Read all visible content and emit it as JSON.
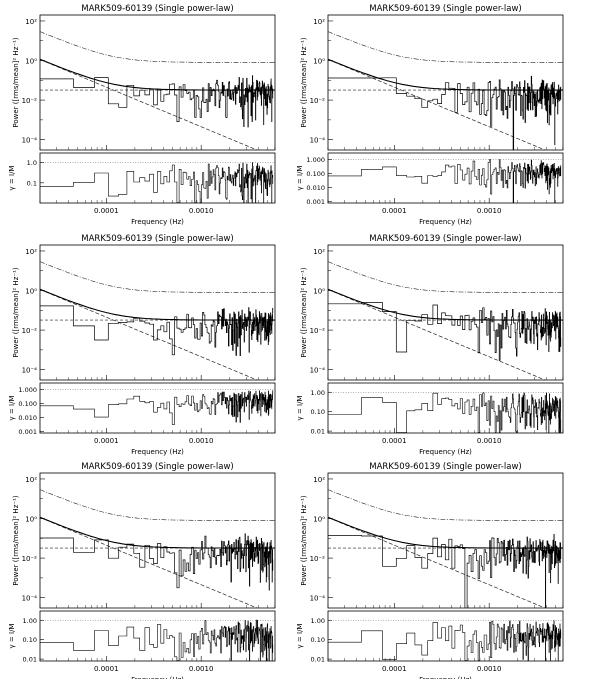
{
  "figure": {
    "panel_title": "MARK509-60139 (Single power-law)",
    "xlabel": "Frequency (Hz)",
    "ylabel_upper": "Power ([rms/mean]² Hz⁻¹)",
    "ylabel_lower": "γ = I/M",
    "x_ticks": [
      "0.0001",
      "0.0010"
    ],
    "upper_ticks": [
      "10²",
      "10⁰",
      "10⁻²",
      "10⁻⁴"
    ],
    "lower_ticks_a": [
      "1.0",
      "0.1"
    ],
    "lower_ticks_b": [
      "1.000",
      "0.100",
      "0.010",
      "0.001"
    ],
    "lower_ticks_c": [
      "1.00",
      "0.10",
      "0.01"
    ]
  },
  "chart_data": [
    {
      "type": "line",
      "title": "MARK509-60139 (Single power-law)",
      "xlabel": "Frequency (Hz)",
      "ylabel": "Power ([rms/mean]² Hz⁻¹)",
      "xscale": "log",
      "yscale": "log",
      "xlim": [
        2e-05,
        0.006
      ],
      "ylim": [
        3e-05,
        200
      ],
      "lower_ylabel": "γ = I/M",
      "lower_ylim": [
        0.01,
        3
      ],
      "model_break": 0.005,
      "lower_ticks": "a",
      "seed": 11
    },
    {
      "type": "line",
      "title": "MARK509-60139 (Single power-law)",
      "xlabel": "Frequency (Hz)",
      "ylabel": "Power ([rms/mean]² Hz⁻¹)",
      "xscale": "log",
      "yscale": "log",
      "xlim": [
        2e-05,
        0.006
      ],
      "ylim": [
        3e-05,
        200
      ],
      "lower_ylabel": "γ = I/M",
      "lower_ylim": [
        0.0008,
        3
      ],
      "model_break": 0.005,
      "lower_ticks": "b",
      "seed": 23
    },
    {
      "type": "line",
      "title": "MARK509-60139 (Single power-law)",
      "xlabel": "Frequency (Hz)",
      "ylabel": "Power ([rms/mean]² Hz⁻¹)",
      "xscale": "log",
      "yscale": "log",
      "xlim": [
        2e-05,
        0.006
      ],
      "ylim": [
        3e-05,
        200
      ],
      "lower_ylabel": "γ = I/M",
      "lower_ylim": [
        0.0008,
        3
      ],
      "model_break": 0.005,
      "lower_ticks": "b",
      "seed": 37
    },
    {
      "type": "line",
      "title": "MARK509-60139 (Single power-law)",
      "xlabel": "Frequency (Hz)",
      "ylabel": "Power ([rms/mean]² Hz⁻¹)",
      "xscale": "log",
      "yscale": "log",
      "xlim": [
        2e-05,
        0.006
      ],
      "ylim": [
        3e-05,
        200
      ],
      "lower_ylabel": "γ = I/M",
      "lower_ylim": [
        0.008,
        3
      ],
      "model_break": 0.005,
      "lower_ticks": "c",
      "seed": 41
    },
    {
      "type": "line",
      "title": "MARK509-60139 (Single power-law)",
      "xlabel": "Frequency (Hz)",
      "ylabel": "Power ([rms/mean]² Hz⁻¹)",
      "xscale": "log",
      "yscale": "log",
      "xlim": [
        2e-05,
        0.006
      ],
      "ylim": [
        3e-05,
        200
      ],
      "lower_ylabel": "γ = I/M",
      "lower_ylim": [
        0.008,
        3
      ],
      "model_break": 0.005,
      "lower_ticks": "c",
      "seed": 53
    },
    {
      "type": "line",
      "title": "MARK509-60139 (Single power-law)",
      "xlabel": "Frequency (Hz)",
      "ylabel": "Power ([rms/mean]² Hz⁻¹)",
      "xscale": "log",
      "yscale": "log",
      "xlim": [
        2e-05,
        0.006
      ],
      "ylim": [
        3e-05,
        200
      ],
      "lower_ylabel": "γ = I/M",
      "lower_ylim": [
        0.008,
        3
      ],
      "model_break": 0.005,
      "lower_ticks": "c",
      "seed": 67
    }
  ]
}
